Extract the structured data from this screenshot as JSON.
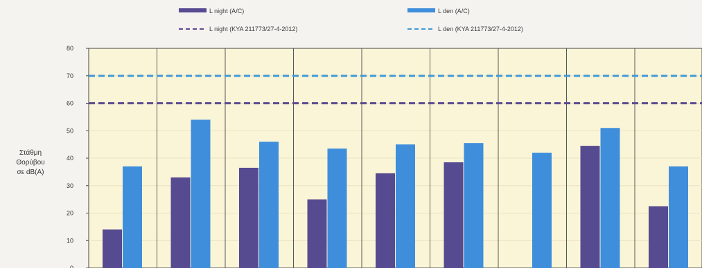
{
  "chart_data": {
    "type": "bar",
    "ylabel_lines": [
      "Στάθμη",
      "Θορύβου",
      "σε dB(A)"
    ],
    "ylim": [
      0,
      80
    ],
    "yticks": [
      0,
      10,
      20,
      30,
      40,
      50,
      60,
      70,
      80
    ],
    "categories": [
      "",
      "",
      "",
      "",
      "",
      "",
      "",
      "",
      ""
    ],
    "series": [
      {
        "name": "L night (A/C)",
        "values": [
          14,
          33,
          36.5,
          25,
          34.5,
          38.5,
          null,
          44.5,
          22.5
        ],
        "color": "#564a91"
      },
      {
        "name": "L den (A/C)",
        "values": [
          37,
          54,
          46,
          43.5,
          45,
          45.5,
          42,
          51,
          37
        ],
        "color": "#3f8edc"
      }
    ],
    "reference_lines": [
      {
        "name": "L night (KYA 211773/27-4-2012)",
        "value": 60,
        "color": "#5b4a8f",
        "style": "dashed"
      },
      {
        "name": "L den (KYA 211773/27-4-2012)",
        "value": 70,
        "color": "#3f9ad8",
        "style": "dashed"
      }
    ],
    "grid": true,
    "legend_position": "top",
    "plot_background": "#fbf5d8"
  }
}
